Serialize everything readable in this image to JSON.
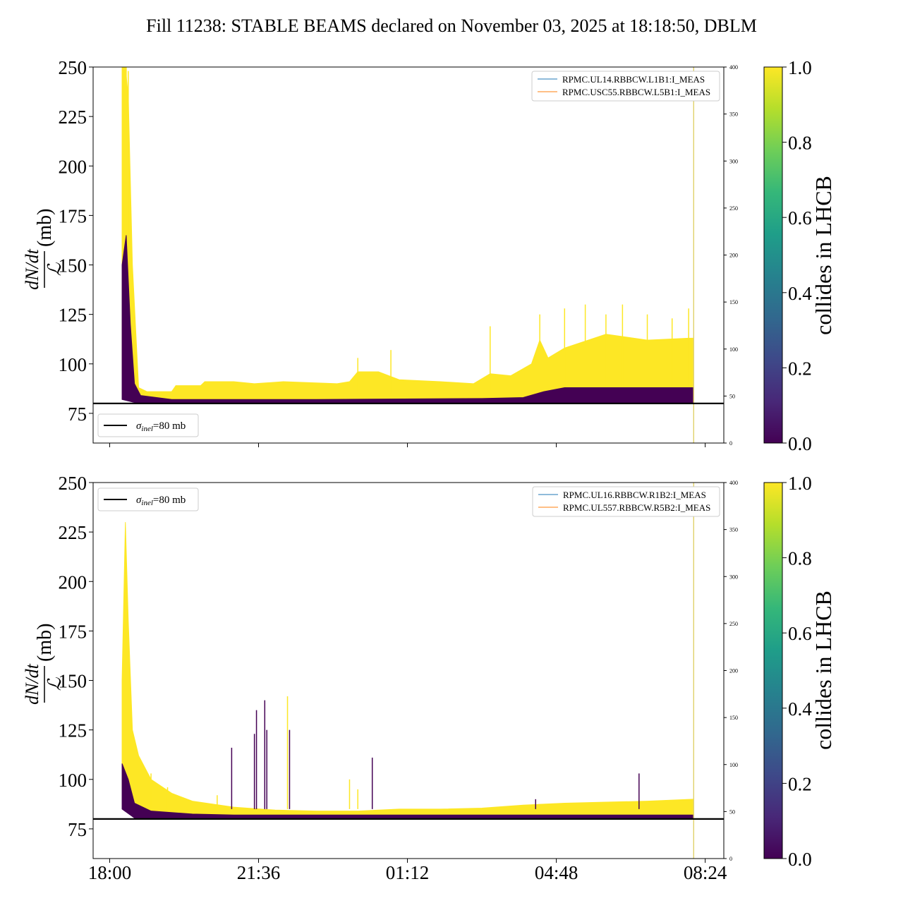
{
  "title": "Fill 11238: STABLE BEAMS declared on November 03, 2025 at 18:18:50, DBLM",
  "colors": {
    "viridis": [
      "#440154",
      "#482878",
      "#3e4989",
      "#31688e",
      "#26828e",
      "#1f9e89",
      "#35b779",
      "#6ece58",
      "#b5de2b",
      "#fde725"
    ],
    "yellow": "#fde725",
    "purple": "#440154",
    "legend_blue": "#1f77b4",
    "legend_orange": "#ff7f0e",
    "marker_line": "#d4c030"
  },
  "xaxis": {
    "ticks": [
      "18:00",
      "21:36",
      "01:12",
      "04:48",
      "08:24"
    ],
    "tick_hours": [
      0,
      3.6,
      7.2,
      10.8,
      14.4
    ],
    "range_hours": [
      -0.4,
      14.85
    ]
  },
  "chart_data": [
    {
      "type": "line",
      "name": "top",
      "ylabel": "(mb)",
      "ylim": [
        60,
        250
      ],
      "yticks": [
        75,
        100,
        125,
        150,
        175,
        200,
        225,
        250
      ],
      "y2lim": [
        0,
        400
      ],
      "y2ticks": [
        0,
        50,
        100,
        150,
        200,
        250,
        300,
        350,
        400
      ],
      "hline": {
        "value": 80,
        "label": "=80 mb"
      },
      "legend_series": [
        "RPMC.UL14.RBBCW.L1B1:I_MEAS",
        "RPMC.USC55.RBBCW.L5B1:I_MEAS"
      ],
      "marker_x_hours": 14.12,
      "colorbar": {
        "label": "collides in LHCB",
        "ticks": [
          "0.0",
          "0.2",
          "0.4",
          "0.6",
          "0.8",
          "1.0"
        ]
      },
      "yellow_top": [
        [
          0.3,
          250
        ],
        [
          0.38,
          250
        ],
        [
          0.45,
          235
        ],
        [
          0.55,
          150
        ],
        [
          0.7,
          88
        ],
        [
          0.9,
          86
        ],
        [
          1.5,
          86
        ],
        [
          1.6,
          89
        ],
        [
          2.2,
          89
        ],
        [
          2.3,
          91
        ],
        [
          3.0,
          91
        ],
        [
          3.5,
          90
        ],
        [
          4.2,
          91
        ],
        [
          5.5,
          90
        ],
        [
          5.8,
          91
        ],
        [
          6.0,
          96
        ],
        [
          6.5,
          96
        ],
        [
          7.0,
          92
        ],
        [
          8.0,
          91
        ],
        [
          8.8,
          90
        ],
        [
          9.2,
          95
        ],
        [
          9.7,
          94
        ],
        [
          10.2,
          100
        ],
        [
          10.4,
          112
        ],
        [
          10.6,
          103
        ],
        [
          11.0,
          108
        ],
        [
          12.0,
          115
        ],
        [
          13.0,
          112
        ],
        [
          14.0,
          113
        ],
        [
          14.1,
          113
        ]
      ],
      "yellow_bottom": [
        [
          0.3,
          95
        ],
        [
          0.7,
          83
        ],
        [
          1.0,
          82
        ],
        [
          3.0,
          82
        ],
        [
          6.0,
          82
        ],
        [
          9.0,
          82
        ],
        [
          12.0,
          82
        ],
        [
          14.1,
          82
        ]
      ],
      "purple_top": [
        [
          0.3,
          150
        ],
        [
          0.4,
          165
        ],
        [
          0.5,
          120
        ],
        [
          0.6,
          90
        ],
        [
          0.75,
          84
        ],
        [
          1.5,
          82
        ],
        [
          5.0,
          82
        ],
        [
          9.0,
          82.5
        ],
        [
          10.0,
          83
        ],
        [
          10.5,
          86
        ],
        [
          11.0,
          88
        ],
        [
          12.0,
          88
        ],
        [
          13.0,
          88
        ],
        [
          14.1,
          88
        ]
      ],
      "purple_bottom": [
        [
          0.3,
          82
        ],
        [
          0.6,
          80.5
        ],
        [
          14.1,
          80.5
        ]
      ],
      "spikes": [
        {
          "x": 6.0,
          "y": 103,
          "c": 1
        },
        {
          "x": 6.8,
          "y": 107,
          "c": 1
        },
        {
          "x": 9.2,
          "y": 119,
          "c": 1
        },
        {
          "x": 10.4,
          "y": 125,
          "c": 1
        },
        {
          "x": 11.0,
          "y": 128,
          "c": 1
        },
        {
          "x": 11.5,
          "y": 130,
          "c": 1
        },
        {
          "x": 12.0,
          "y": 125,
          "c": 1
        },
        {
          "x": 12.4,
          "y": 130,
          "c": 1
        },
        {
          "x": 13.0,
          "y": 125,
          "c": 1
        },
        {
          "x": 13.6,
          "y": 123,
          "c": 1
        },
        {
          "x": 14.0,
          "y": 128,
          "c": 1
        },
        {
          "x": 0.35,
          "y": 250,
          "c": 1
        },
        {
          "x": 0.4,
          "y": 250,
          "c": 1
        },
        {
          "x": 0.45,
          "y": 248,
          "c": 1
        }
      ]
    },
    {
      "type": "line",
      "name": "bottom",
      "ylabel": "(mb)",
      "ylim": [
        60,
        250
      ],
      "yticks": [
        75,
        100,
        125,
        150,
        175,
        200,
        225,
        250
      ],
      "y2lim": [
        0,
        400
      ],
      "y2ticks": [
        0,
        50,
        100,
        150,
        200,
        250,
        300,
        350,
        400
      ],
      "hline": {
        "value": 80,
        "label": "=80 mb"
      },
      "legend_series": [
        "RPMC.UL16.RBBCW.R1B2:I_MEAS",
        "RPMC.UL557.RBBCW.R5B2:I_MEAS"
      ],
      "marker_x_hours": 14.12,
      "colorbar": {
        "label": "collides in LHCB",
        "ticks": [
          "0.0",
          "0.2",
          "0.4",
          "0.6",
          "0.8",
          "1.0"
        ]
      },
      "yellow_top": [
        [
          0.3,
          150
        ],
        [
          0.38,
          230
        ],
        [
          0.45,
          180
        ],
        [
          0.55,
          125
        ],
        [
          0.7,
          112
        ],
        [
          1.0,
          100
        ],
        [
          1.5,
          93
        ],
        [
          2.0,
          89
        ],
        [
          3.0,
          86
        ],
        [
          4.0,
          84.5
        ],
        [
          5.0,
          84
        ],
        [
          6.0,
          84
        ],
        [
          7.0,
          85
        ],
        [
          8.0,
          85
        ],
        [
          9.0,
          85.5
        ],
        [
          10.0,
          87
        ],
        [
          11.0,
          88
        ],
        [
          12.0,
          88.5
        ],
        [
          13.0,
          89
        ],
        [
          14.1,
          90
        ]
      ],
      "yellow_bottom": [
        [
          0.3,
          96
        ],
        [
          0.6,
          84
        ],
        [
          1.0,
          82
        ],
        [
          3.0,
          81.5
        ],
        [
          14.1,
          81.5
        ]
      ],
      "purple_top": [
        [
          0.3,
          108
        ],
        [
          0.45,
          100
        ],
        [
          0.6,
          88
        ],
        [
          1.0,
          84
        ],
        [
          2.0,
          82.5
        ],
        [
          3.0,
          82
        ],
        [
          14.1,
          82
        ]
      ],
      "purple_bottom": [
        [
          0.3,
          85
        ],
        [
          0.6,
          80.5
        ],
        [
          14.1,
          80.5
        ]
      ],
      "spikes": [
        {
          "x": 1.0,
          "y": 103,
          "c": 1
        },
        {
          "x": 1.4,
          "y": 96,
          "c": 1
        },
        {
          "x": 2.6,
          "y": 92,
          "c": 1
        },
        {
          "x": 2.95,
          "y": 116,
          "c": 0
        },
        {
          "x": 3.5,
          "y": 123,
          "c": 0
        },
        {
          "x": 3.55,
          "y": 135,
          "c": 0
        },
        {
          "x": 3.75,
          "y": 140,
          "c": 0
        },
        {
          "x": 3.8,
          "y": 125,
          "c": 0
        },
        {
          "x": 4.3,
          "y": 142,
          "c": 1
        },
        {
          "x": 4.35,
          "y": 125,
          "c": 0
        },
        {
          "x": 5.8,
          "y": 100,
          "c": 1
        },
        {
          "x": 6.0,
          "y": 95,
          "c": 1
        },
        {
          "x": 6.35,
          "y": 111,
          "c": 0
        },
        {
          "x": 10.3,
          "y": 90,
          "c": 0
        },
        {
          "x": 12.8,
          "y": 103,
          "c": 0
        }
      ]
    }
  ]
}
